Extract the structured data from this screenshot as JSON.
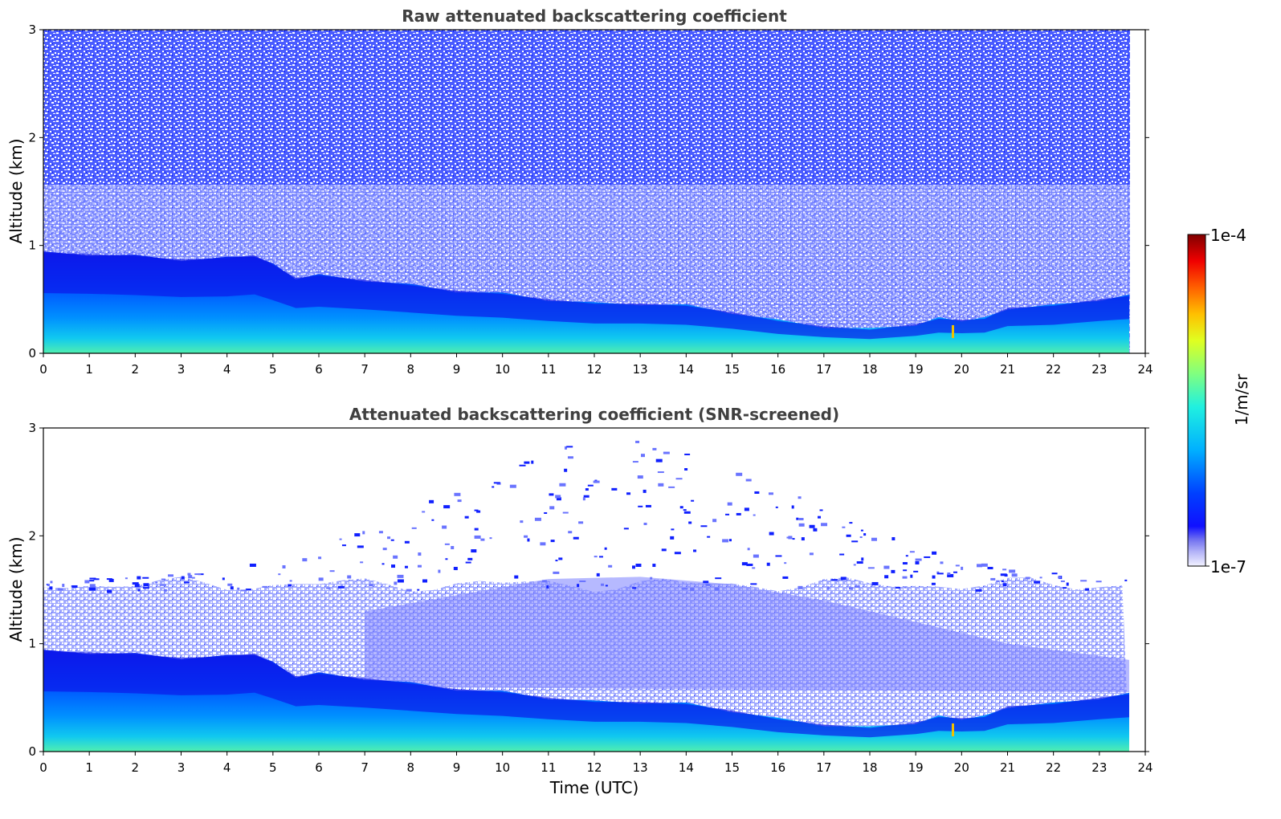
{
  "chart_data": [
    {
      "type": "heatmap",
      "title": "Raw attenuated backscattering coefficient",
      "xlabel": "",
      "ylabel": "Altitude (km)",
      "xlim": [
        0,
        24
      ],
      "ylim": [
        0,
        3
      ],
      "x_ticks": [
        "0",
        "1",
        "2",
        "3",
        "4",
        "5",
        "6",
        "7",
        "8",
        "9",
        "10",
        "11",
        "12",
        "13",
        "14",
        "15",
        "16",
        "17",
        "18",
        "19",
        "20",
        "21",
        "22",
        "23",
        "24"
      ],
      "y_ticks": [
        "0",
        "1",
        "2",
        "3"
      ],
      "data_end_time": 23.65,
      "description_levels": "log10 backscatter, 1e-7 to 1e-4",
      "boundary_layer_top_km": {
        "time": [
          0,
          1,
          2,
          3,
          4,
          4.6,
          5,
          5.5,
          6,
          7,
          8,
          9,
          10,
          11,
          12,
          13,
          14,
          15,
          16,
          17,
          18,
          19,
          19.5,
          20,
          20.5,
          21,
          22,
          23,
          23.65
        ],
        "height": [
          0.93,
          0.92,
          0.9,
          0.87,
          0.88,
          0.91,
          0.82,
          0.7,
          0.72,
          0.68,
          0.63,
          0.58,
          0.55,
          0.5,
          0.46,
          0.46,
          0.44,
          0.38,
          0.3,
          0.25,
          0.22,
          0.27,
          0.32,
          0.31,
          0.32,
          0.42,
          0.44,
          0.5,
          0.53
        ]
      },
      "noise": "high",
      "series": []
    },
    {
      "type": "heatmap",
      "title": "Attenuated backscattering coefficient (SNR-screened)",
      "xlabel": "Time (UTC)",
      "ylabel": "Altitude (km)",
      "xlim": [
        0,
        24
      ],
      "ylim": [
        0,
        3
      ],
      "x_ticks": [
        "0",
        "1",
        "2",
        "3",
        "4",
        "5",
        "6",
        "7",
        "8",
        "9",
        "10",
        "11",
        "12",
        "13",
        "14",
        "15",
        "16",
        "17",
        "18",
        "19",
        "20",
        "21",
        "22",
        "23",
        "24"
      ],
      "y_ticks": [
        "0",
        "1",
        "2",
        "3"
      ],
      "data_end_time": 23.65,
      "boundary_layer_top_km": {
        "time": [
          0,
          1,
          2,
          3,
          4,
          4.6,
          5,
          5.5,
          6,
          7,
          8,
          9,
          10,
          11,
          12,
          13,
          14,
          15,
          16,
          17,
          18,
          19,
          19.5,
          20,
          20.5,
          21,
          22,
          23,
          23.65
        ],
        "height": [
          0.93,
          0.92,
          0.9,
          0.87,
          0.88,
          0.91,
          0.82,
          0.7,
          0.72,
          0.68,
          0.63,
          0.58,
          0.55,
          0.5,
          0.46,
          0.46,
          0.44,
          0.38,
          0.3,
          0.25,
          0.22,
          0.27,
          0.32,
          0.31,
          0.32,
          0.42,
          0.44,
          0.5,
          0.53
        ]
      },
      "residual_layer_top_km": 1.55,
      "noise": "screened",
      "series": []
    }
  ],
  "colorbar": {
    "label": "1/m/sr",
    "max_label": "1e-4",
    "min_label": "1e-7",
    "colormap": "jet-with-white-to-lavender-low-end",
    "low_color": "#f0f0ff",
    "high_color": "#800000"
  }
}
